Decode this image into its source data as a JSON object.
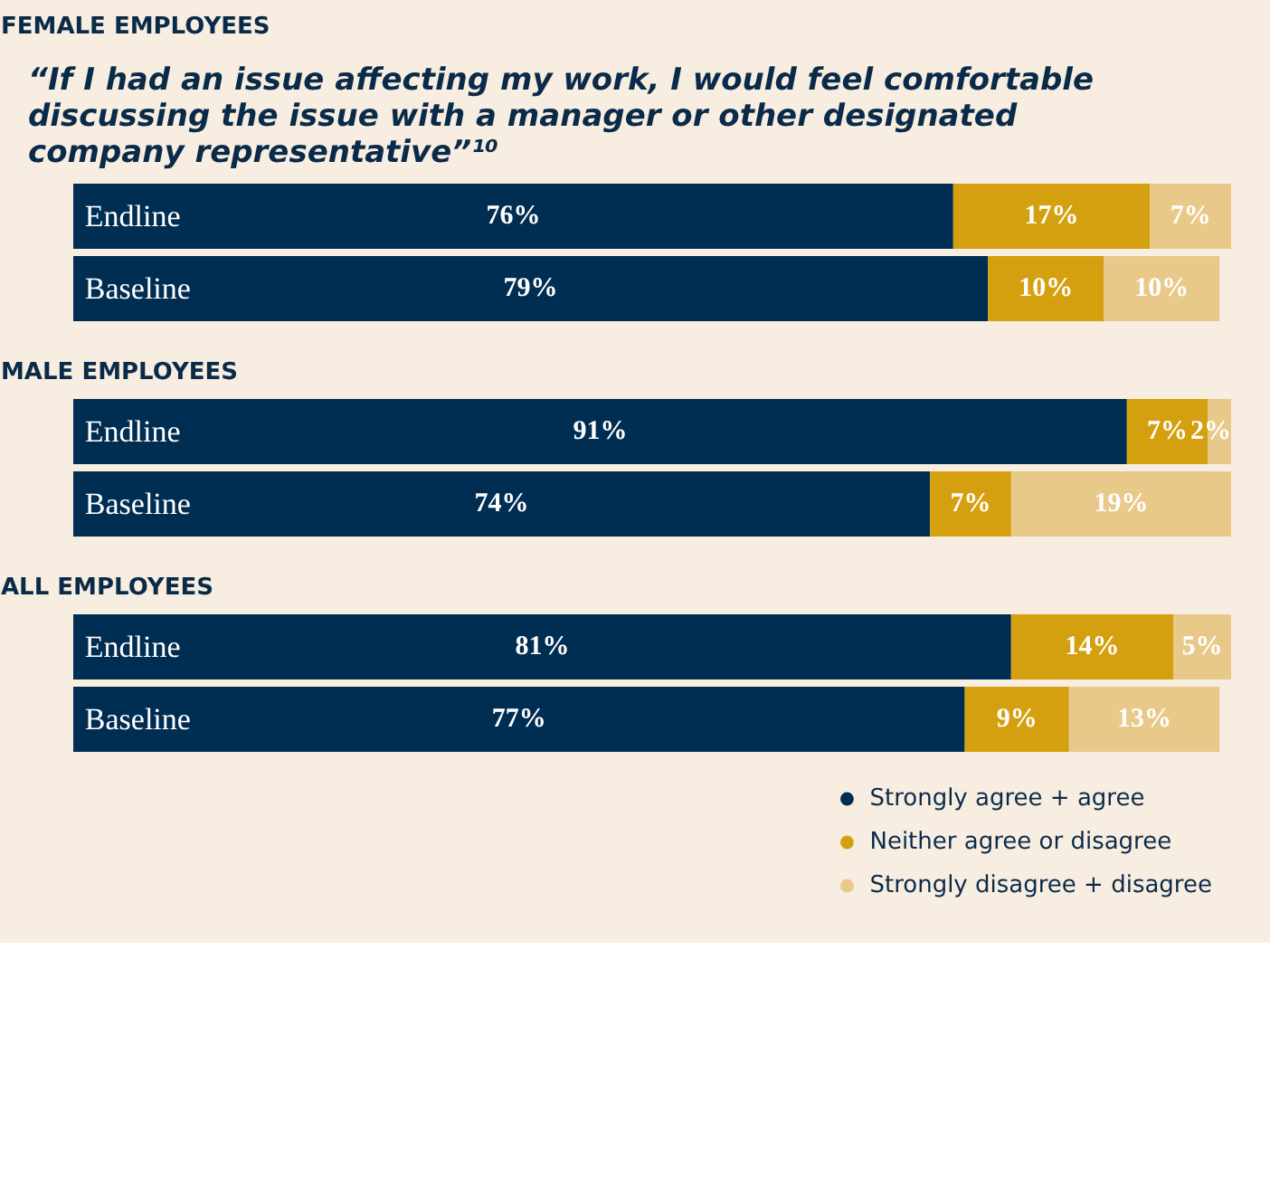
{
  "chart_data": [
    {
      "type": "bar",
      "orientation": "horizontal",
      "stacked": true,
      "title": "“If I had an issue affecting my work, I would feel comfortable\ndiscussing the issue with a manager or other designated\ncompany representative”¹⁰",
      "subtitle": "FEMALE EMPLOYEES",
      "categories": [
        "Endline",
        "Baseline"
      ],
      "series": [
        {
          "color": "#002d52",
          "values": [
            76,
            79
          ],
          "value_labels": [
            "76%",
            "79%"
          ]
        },
        {
          "color": "#d4a00f",
          "values": [
            17,
            10
          ],
          "value_labels": [
            "17%",
            "10%"
          ]
        },
        {
          "color": "#e8c98a",
          "values": [
            7,
            10
          ],
          "value_labels": [
            "7%",
            "10%"
          ]
        }
      ]
    },
    {
      "type": "bar",
      "orientation": "horizontal",
      "stacked": true,
      "title": "MALE EMPLOYEES",
      "categories": [
        "Endline",
        "Baseline"
      ],
      "series": [
        {
          "color": "#002d52",
          "values": [
            91,
            74
          ],
          "value_labels": [
            "91%",
            "74%"
          ]
        },
        {
          "color": "#d4a00f",
          "values": [
            7,
            7
          ],
          "value_labels": [
            "7%",
            "7%"
          ]
        },
        {
          "color": "#e8c98a",
          "values": [
            2,
            19
          ],
          "value_labels": [
            "2%",
            "19%"
          ]
        }
      ]
    },
    {
      "type": "bar",
      "orientation": "horizontal",
      "stacked": true,
      "title": "ALL EMPLOYEES",
      "categories": [
        "Endline",
        "Baseline"
      ],
      "legend": "bottom right",
      "series": [
        {
          "name": "Strongly agree + agree",
          "color": "#002d52",
          "values": [
            81,
            77
          ],
          "value_labels": [
            "81%",
            "77%"
          ]
        },
        {
          "name": "Neither agree or disagree",
          "color": "#d4a00f",
          "values": [
            14,
            9
          ],
          "value_labels": [
            "14%",
            "9%"
          ]
        },
        {
          "name": "Strongly disagree + disagree",
          "color": "#e8c98a",
          "values": [
            5,
            13
          ],
          "value_labels": [
            "5%",
            "13%"
          ]
        }
      ]
    }
  ]
}
